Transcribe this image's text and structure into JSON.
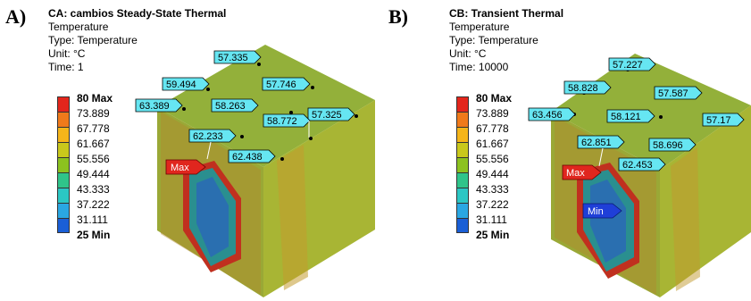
{
  "panels": [
    {
      "letter": "A)",
      "title": "CA: cambios Steady-State Thermal",
      "type": "Temperature",
      "type_line": "Type: Temperature",
      "unit_line": "Unit: °C",
      "time_line": "Time: 1",
      "legend": [
        "80 Max",
        "73.889",
        "67.778",
        "61.667",
        "55.556",
        "49.444",
        "43.333",
        "37.222",
        "31.111",
        "25 Min"
      ],
      "probes": [
        "57.335",
        "59.494",
        "57.746",
        "63.389",
        "58.263",
        "57.325",
        "58.772",
        "62.233",
        "62.438"
      ],
      "max_label": "Max"
    },
    {
      "letter": "B)",
      "title": "CB: Transient Thermal",
      "type": "Temperature",
      "type_line": "Type: Temperature",
      "unit_line": "Unit: °C",
      "time_line": "Time: 10000",
      "legend": [
        "80 Max",
        "73.889",
        "67.778",
        "61.667",
        "55.556",
        "49.444",
        "43.333",
        "37.222",
        "31.111",
        "25 Min"
      ],
      "probes": [
        "57.227",
        "58.828",
        "57.587",
        "63.456",
        "58.121",
        "57.17",
        "62.851",
        "58.696",
        "62.453"
      ],
      "max_label": "Max",
      "min_label": "Min"
    }
  ],
  "colors": {
    "legend_bands": [
      "#e3261c",
      "#f07a1b",
      "#f5b51a",
      "#c9c81c",
      "#8cc21f",
      "#2fc48a",
      "#2bc7c4",
      "#2aa7e3",
      "#1a5fd6",
      "#0b21c9"
    ],
    "top_face": "#93b03a",
    "side_face": "#a8b534",
    "front_face": "#9aa836",
    "probe_fill": "#66e6f2",
    "max_marker": "#e0261e",
    "min_marker": "#1f3fd8"
  }
}
